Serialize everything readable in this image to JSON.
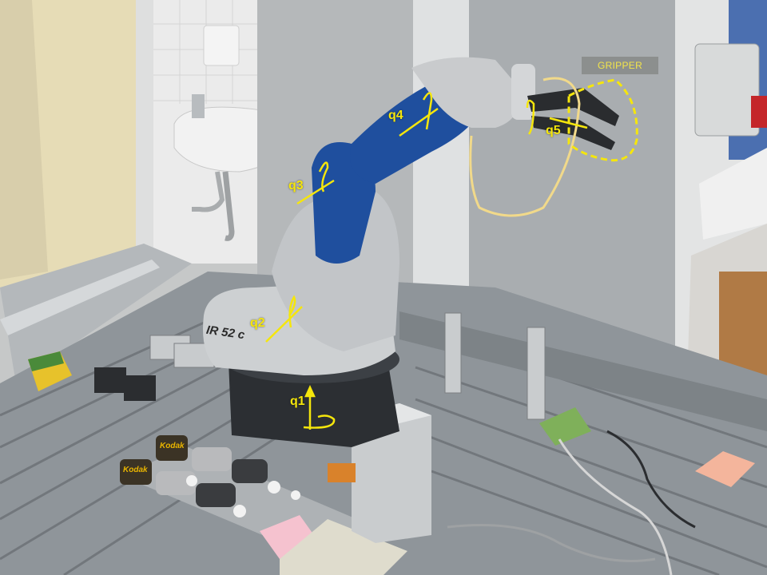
{
  "joints": {
    "q1": "q1",
    "q2": "q2",
    "q3": "q3",
    "q4": "q4",
    "q5": "q5"
  },
  "gripper_label": "GRIPPER",
  "robot_model": "IR 52 c",
  "battery_brand": "Kodak",
  "colors": {
    "annotation": "#f5e60c",
    "robot_blue": "#1f4f9e",
    "robot_silver": "#c9cbcd",
    "table": "#8f959a"
  }
}
